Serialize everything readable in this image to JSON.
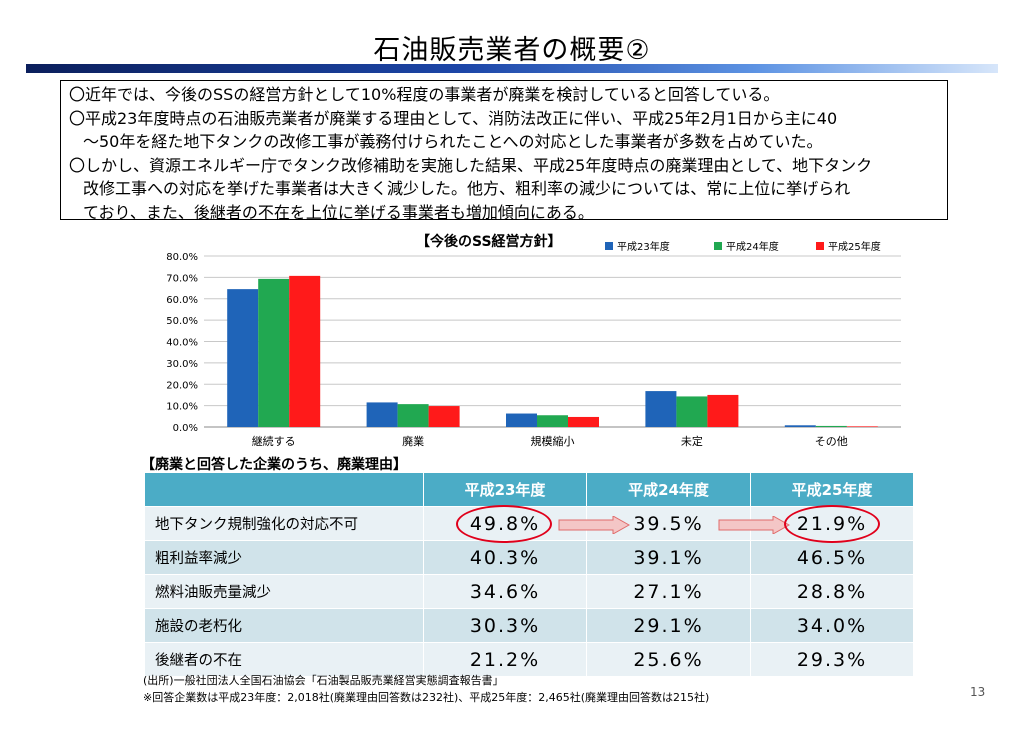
{
  "title": "石油販売業者の概要②",
  "summary": {
    "line1": "〇近年では、今後のSSの経営方針として10%程度の事業者が廃業を検討していると回答している。",
    "line2a": "〇平成23年度時点の石油販売業者が廃業する理由として、消防法改正に伴い、平成25年2月1日から主に40",
    "line2b": "～50年を経た地下タンクの改修工事が義務付けられたことへの対応とした事業者が多数を占めていた。",
    "line3a": "〇しかし、資源エネルギー庁でタンク改修補助を実施した結果、平成25年度時点の廃業理由として、地下タンク",
    "line3b": "改修工事への対応を挙げた事業者は大きく減少した。他方、粗利率の減少については、常に上位に挙げられ",
    "line3c": "ており、また、後継者の不在を上位に挙げる事業者も増加傾向にある。"
  },
  "chart_data": {
    "type": "bar",
    "title": "【今後のSS経営方針】",
    "categories": [
      "継続する",
      "廃業",
      "規模縮小",
      "未定",
      "その他"
    ],
    "series": [
      {
        "name": "平成23年度",
        "color": "#1f64b8",
        "values": [
          64.5,
          11.5,
          6.3,
          16.8,
          0.8
        ]
      },
      {
        "name": "平成24年度",
        "color": "#21a851",
        "values": [
          69.3,
          10.7,
          5.5,
          14.3,
          0.5
        ]
      },
      {
        "name": "平成25年度",
        "color": "#ff1a1a",
        "values": [
          70.7,
          9.8,
          4.7,
          15.0,
          0.3
        ]
      }
    ],
    "ylim": [
      0,
      80
    ],
    "yticks": [
      "0.0%",
      "10.0%",
      "20.0%",
      "30.0%",
      "40.0%",
      "50.0%",
      "60.0%",
      "70.0%",
      "80.0%"
    ],
    "grid": true,
    "legend": "top-right"
  },
  "reasons": {
    "title": "【廃業と回答した企業のうち、廃業理由】",
    "columns": [
      "",
      "平成23年度",
      "平成24年度",
      "平成25年度"
    ],
    "rows": [
      {
        "label": "地下タンク規制強化の対応不可",
        "values": [
          "49.8%",
          "39.5%",
          "21.9%"
        ]
      },
      {
        "label": "粗利益率減少",
        "values": [
          "40.3%",
          "39.1%",
          "46.5%"
        ]
      },
      {
        "label": "燃料油販売量減少",
        "values": [
          "34.6%",
          "27.1%",
          "28.8%"
        ]
      },
      {
        "label": "施設の老朽化",
        "values": [
          "30.3%",
          "29.1%",
          "34.0%"
        ]
      },
      {
        "label": "後継者の不在",
        "values": [
          "21.2%",
          "25.6%",
          "29.3%"
        ]
      }
    ]
  },
  "notes": {
    "source": "(出所)一般社団法人全国石油協会「石油製品販売業経営実態調査報告書」",
    "remark": "※回答企業数は平成23年度：2,018社(廃業理由回答数は232社)、平成25年度：2,465社(廃業理由回答数は215社)"
  },
  "page_number": "13"
}
